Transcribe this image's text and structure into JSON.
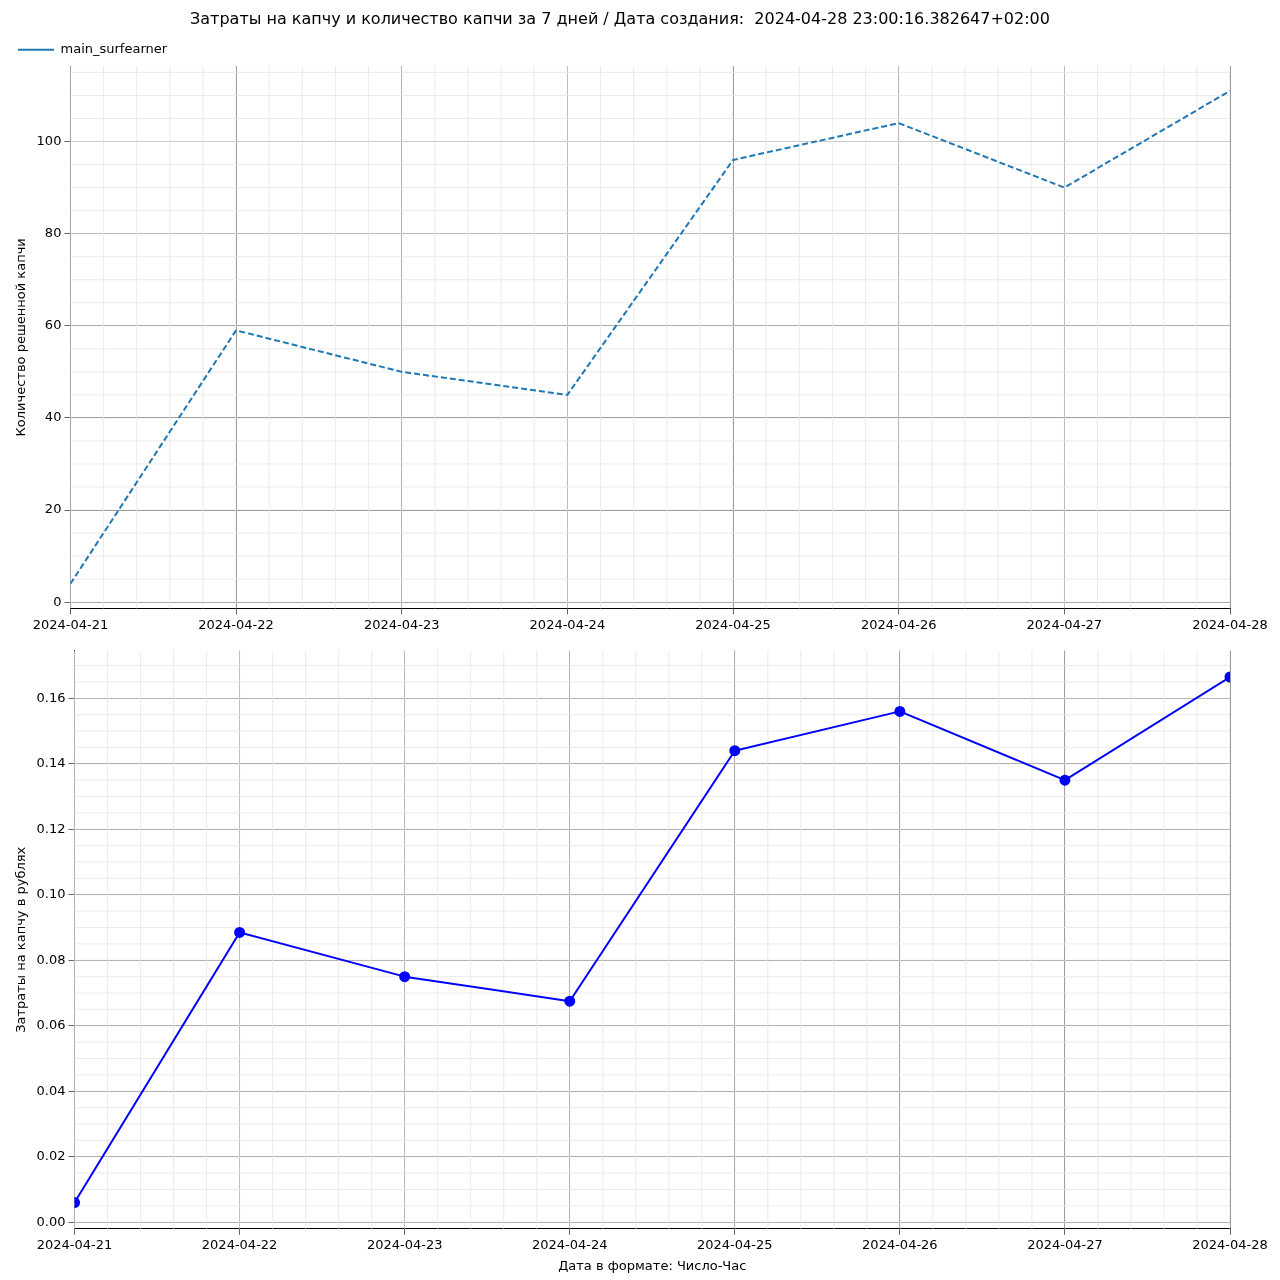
{
  "chart_data": [
    {
      "type": "line",
      "title": "Затраты на капчу и количество капчи за 7 дней / Дата создания:  2024-04-28 23:00:16.382647+02:00",
      "ylabel": "Количество решенной капчи",
      "x": [
        "2024-04-21",
        "2024-04-22",
        "2024-04-23",
        "2024-04-24",
        "2024-04-25",
        "2024-04-26",
        "2024-04-27",
        "2024-04-28"
      ],
      "series": [
        {
          "name": "main_surfearner",
          "color": "#1f77b4",
          "line_style": "dashed",
          "marker": "none",
          "values": [
            4,
            59,
            50,
            45,
            96,
            104,
            90,
            111
          ]
        }
      ],
      "xlim": [
        "2024-04-21",
        "2024-04-28"
      ],
      "xticks": [
        "2024-04-21",
        "2024-04-22",
        "2024-04-23",
        "2024-04-24",
        "2024-04-25",
        "2024-04-26",
        "2024-04-27",
        "2024-04-28"
      ],
      "ylim": [
        -1.35,
        116.35
      ],
      "yticks": [
        0,
        20,
        40,
        60,
        80,
        100
      ],
      "grid": true,
      "legend": "top left"
    },
    {
      "type": "line",
      "xlabel": "Дата в формате: Число-Час",
      "ylabel": "Затраты на капчу в рублях",
      "x": [
        "2024-04-21",
        "2024-04-22",
        "2024-04-23",
        "2024-04-24",
        "2024-04-25",
        "2024-04-26",
        "2024-04-27",
        "2024-04-28"
      ],
      "series": [
        {
          "color": "#0000ff",
          "line_style": "solid",
          "marker": "circle",
          "values": [
            0.006,
            0.0885,
            0.075,
            0.0675,
            0.144,
            0.156,
            0.135,
            0.1665
          ]
        }
      ],
      "xlim": [
        "2024-04-21",
        "2024-04-28"
      ],
      "xticks": [
        "2024-04-21",
        "2024-04-22",
        "2024-04-23",
        "2024-04-24",
        "2024-04-25",
        "2024-04-26",
        "2024-04-27",
        "2024-04-28"
      ],
      "ylim": [
        -0.002,
        0.1745
      ],
      "yticks": [
        {
          "value": 0,
          "label": "0.00"
        },
        {
          "value": 0.02,
          "label": "0.02"
        },
        {
          "value": 0.04,
          "label": "0.04"
        },
        {
          "value": 0.06,
          "label": "0.06"
        },
        {
          "value": 0.08,
          "label": "0.08"
        },
        {
          "value": 0.1,
          "label": "0.10"
        },
        {
          "value": 0.12,
          "label": "0.12"
        },
        {
          "value": 0.14,
          "label": "0.14"
        },
        {
          "value": 0.16,
          "label": "0.16"
        }
      ],
      "grid": true,
      "legend": false
    }
  ]
}
